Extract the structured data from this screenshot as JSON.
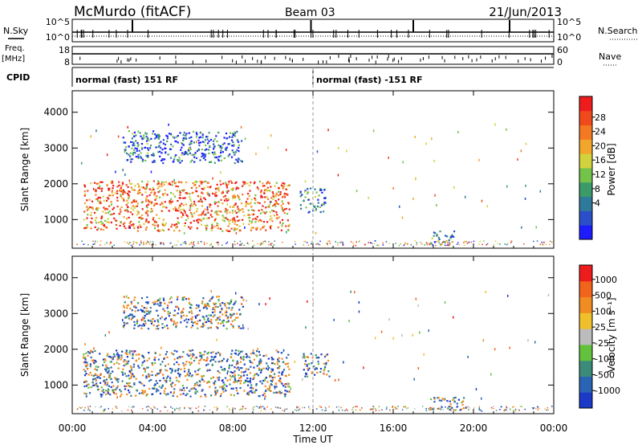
{
  "header": {
    "station": "McMurdo (fitACF)",
    "beam": "Beam 03",
    "date": "21/Jun/2013"
  },
  "top_panels": {
    "nsky_label": "N.Sky",
    "nsky_ticks": [
      "10^5",
      "10^0"
    ],
    "nsearch_label": "N.Search",
    "nsearch_ticks": [
      "10^5",
      "10^0"
    ],
    "freq_label_top": "Freq.",
    "freq_label_bottom": "[MHz]",
    "freq_ticks": [
      "18",
      "8"
    ],
    "nave_label": "Nave",
    "nave_ticks": [
      "60",
      "0"
    ],
    "cpid_label": "CPID",
    "cpid_segments": [
      {
        "start_hour": 0,
        "label": "normal (fast) 151 RF"
      },
      {
        "start_hour": 12,
        "label": "normal (fast) -151 RF"
      }
    ]
  },
  "colorbars": {
    "power": {
      "label": "Power [dB]",
      "ticks": [
        "28",
        "24",
        "20",
        "16",
        "12",
        "8",
        "4"
      ],
      "colors": [
        "#1c1cff",
        "#2a4fc9",
        "#2f7a9a",
        "#3a9a6a",
        "#73c24a",
        "#d2d23c",
        "#f3a62c",
        "#f37a22",
        "#f04a1c",
        "#ee1c1c"
      ]
    },
    "velocity": {
      "label": "Velocity [m s⁻¹]",
      "ticks": [
        "1000",
        "500",
        "100",
        "25",
        "-25",
        "-100",
        "-500",
        "-1000"
      ],
      "colors": [
        "#1c3ac8",
        "#2a64b4",
        "#3a8c78",
        "#62c23e",
        "#bcbcbc",
        "#f0c02c",
        "#f08c22",
        "#f0641c",
        "#ee1c1c"
      ]
    }
  },
  "chart_data": {
    "type": "heatmap",
    "xlabel": "Time UT",
    "x_ticks": [
      "00:00",
      "04:00",
      "08:00",
      "12:00",
      "16:00",
      "20:00",
      "00:00"
    ],
    "xlim_hours": [
      0,
      24
    ],
    "ylabel": "Slant Range [km]",
    "y_ticks": [
      "1000",
      "2000",
      "3000",
      "4000"
    ],
    "ylim_km": [
      200,
      4600
    ],
    "panels": [
      {
        "name": "power",
        "scatter_regions": [
          {
            "t0": 0.5,
            "t1": 10.8,
            "r0": 700,
            "r1": 2100,
            "level": 0.7
          },
          {
            "t0": 2.5,
            "t1": 8.5,
            "r0": 2600,
            "r1": 3500,
            "level": 0.1
          },
          {
            "t0": 11.3,
            "t1": 12.6,
            "r0": 1200,
            "r1": 1900,
            "level": 0.15
          },
          {
            "t0": 17.8,
            "t1": 19.0,
            "r0": 300,
            "r1": 700,
            "level": 0.2
          }
        ]
      },
      {
        "name": "velocity",
        "scatter_regions": [
          {
            "t0": 0.5,
            "t1": 10.8,
            "r0": 700,
            "r1": 2000,
            "level": 0.65
          },
          {
            "t0": 2.5,
            "t1": 8.5,
            "r0": 2600,
            "r1": 3500,
            "level": 0.4
          },
          {
            "t0": 11.5,
            "t1": 12.8,
            "r0": 1200,
            "r1": 1900,
            "level": 0.3
          },
          {
            "t0": 17.8,
            "t1": 19.5,
            "r0": 300,
            "r1": 700,
            "level": 0.3
          }
        ]
      }
    ]
  }
}
